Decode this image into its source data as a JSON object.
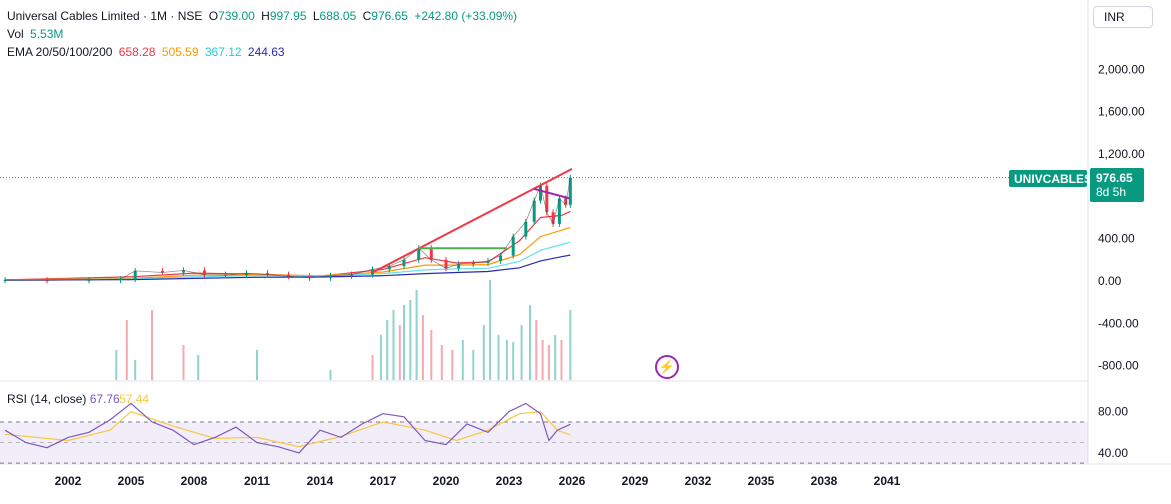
{
  "header": {
    "symbol_title": "Universal Cables Limited · 1M · NSE",
    "open_label": "O",
    "open": "739.00",
    "high_label": "H",
    "high": "997.95",
    "low_label": "L",
    "low": "688.05",
    "close_label": "C",
    "close": "976.65",
    "change": "+242.80 (+33.09%)",
    "vol_label": "Vol",
    "vol_value": "5.53",
    "vol_unit": "M",
    "ema_label": "EMA 20/50/100/200",
    "ema20": "658.28",
    "ema50": "505.59",
    "ema100": "367.12",
    "ema200": "244.63",
    "currency": "INR"
  },
  "colors": {
    "up": "#089981",
    "down": "#f23645",
    "ema20": "#f23645",
    "ema50": "#ff9800",
    "ema100": "#66e0f0",
    "ema200": "#2a2ab0",
    "rsi": "#7e57c2",
    "rsi_ma": "#f7c744",
    "trendline": "#f23645",
    "channel": "#4caf50",
    "pattern": "#9c27b0"
  },
  "price_tag": {
    "ticker": "UNIVCABLES",
    "price": "976.65",
    "countdown": "8d 5h"
  },
  "rsi": {
    "label": "RSI (14, close)",
    "value": "67.76",
    "ma_value": "57.44"
  },
  "icons": {
    "flash": "lightning-icon"
  },
  "chart_data": {
    "type": "candlestick",
    "interval": "1M",
    "title": "",
    "price_axis": {
      "ticks": [
        "2,000.00",
        "1,600.00",
        "1,200.00",
        "400.00",
        "0.00",
        "-400.00",
        "-800.00"
      ],
      "tick_values": [
        2000,
        1600,
        1200,
        400,
        0,
        -400,
        -800
      ]
    },
    "rsi_axis": {
      "ticks": [
        "80.00",
        "40.00"
      ],
      "tick_values": [
        80,
        40
      ],
      "band": [
        30,
        70
      ]
    },
    "x_axis": {
      "ticks": [
        "2002",
        "2005",
        "2008",
        "2011",
        "2014",
        "2017",
        "2020",
        "2023",
        "2026",
        "2029",
        "2032",
        "2035",
        "2038",
        "2041"
      ],
      "tick_values": [
        2002,
        2005,
        2008,
        2011,
        2014,
        2017,
        2020,
        2023,
        2026,
        2029,
        2032,
        2035,
        2038,
        2041
      ]
    },
    "price_series": [
      {
        "t": 1999.0,
        "c": 8
      },
      {
        "t": 2001.0,
        "c": 6
      },
      {
        "t": 2003.0,
        "c": 10
      },
      {
        "t": 2004.5,
        "c": 18
      },
      {
        "t": 2005.2,
        "c": 95
      },
      {
        "t": 2006.5,
        "c": 80
      },
      {
        "t": 2007.5,
        "c": 100
      },
      {
        "t": 2008.5,
        "c": 60
      },
      {
        "t": 2009.5,
        "c": 55
      },
      {
        "t": 2010.5,
        "c": 75
      },
      {
        "t": 2011.5,
        "c": 60
      },
      {
        "t": 2012.5,
        "c": 45
      },
      {
        "t": 2013.5,
        "c": 30
      },
      {
        "t": 2014.5,
        "c": 50
      },
      {
        "t": 2015.5,
        "c": 60
      },
      {
        "t": 2016.5,
        "c": 110
      },
      {
        "t": 2017.3,
        "c": 140
      },
      {
        "t": 2018.0,
        "c": 200
      },
      {
        "t": 2018.7,
        "c": 310
      },
      {
        "t": 2019.3,
        "c": 200
      },
      {
        "t": 2020.0,
        "c": 120
      },
      {
        "t": 2020.6,
        "c": 160
      },
      {
        "t": 2021.3,
        "c": 170
      },
      {
        "t": 2022.0,
        "c": 190
      },
      {
        "t": 2022.6,
        "c": 240
      },
      {
        "t": 2023.2,
        "c": 420
      },
      {
        "t": 2023.8,
        "c": 560
      },
      {
        "t": 2024.2,
        "c": 760
      },
      {
        "t": 2024.5,
        "c": 900
      },
      {
        "t": 2024.8,
        "c": 650
      },
      {
        "t": 2025.1,
        "c": 540
      },
      {
        "t": 2025.4,
        "c": 780
      },
      {
        "t": 2025.7,
        "c": 720
      },
      {
        "t": 2025.92,
        "c": 976.65
      }
    ],
    "ema_series": {
      "ema20": [
        [
          1999,
          10
        ],
        [
          2005,
          40
        ],
        [
          2008,
          75
        ],
        [
          2011,
          65
        ],
        [
          2014,
          45
        ],
        [
          2017,
          110
        ],
        [
          2019,
          220
        ],
        [
          2020.5,
          170
        ],
        [
          2022,
          180
        ],
        [
          2023.5,
          380
        ],
        [
          2024.5,
          600
        ],
        [
          2025.5,
          620
        ],
        [
          2025.92,
          658.28
        ]
      ],
      "ema50": [
        [
          1999,
          10
        ],
        [
          2005,
          25
        ],
        [
          2008,
          55
        ],
        [
          2011,
          60
        ],
        [
          2014,
          50
        ],
        [
          2017,
          85
        ],
        [
          2019,
          150
        ],
        [
          2020.5,
          150
        ],
        [
          2022,
          155
        ],
        [
          2023.5,
          250
        ],
        [
          2024.5,
          420
        ],
        [
          2025.5,
          480
        ],
        [
          2025.92,
          505.59
        ]
      ],
      "ema100": [
        [
          1999,
          10
        ],
        [
          2005,
          18
        ],
        [
          2008,
          40
        ],
        [
          2011,
          50
        ],
        [
          2014,
          45
        ],
        [
          2017,
          70
        ],
        [
          2019,
          105
        ],
        [
          2020.5,
          115
        ],
        [
          2022,
          120
        ],
        [
          2023.5,
          185
        ],
        [
          2024.5,
          290
        ],
        [
          2025.5,
          345
        ],
        [
          2025.92,
          367.12
        ]
      ],
      "ema200": [
        [
          1999,
          8
        ],
        [
          2005,
          12
        ],
        [
          2008,
          25
        ],
        [
          2011,
          35
        ],
        [
          2014,
          38
        ],
        [
          2017,
          50
        ],
        [
          2019,
          70
        ],
        [
          2020.5,
          80
        ],
        [
          2022,
          90
        ],
        [
          2023.5,
          125
        ],
        [
          2024.5,
          190
        ],
        [
          2025.5,
          230
        ],
        [
          2025.92,
          244.63
        ]
      ]
    },
    "volume_series": [
      [
        2004.3,
        30,
        "up"
      ],
      [
        2004.8,
        60,
        "down"
      ],
      [
        2005.2,
        20,
        "up"
      ],
      [
        2006.0,
        70,
        "down"
      ],
      [
        2007.5,
        35,
        "down"
      ],
      [
        2008.2,
        25,
        "up"
      ],
      [
        2011.0,
        30,
        "up"
      ],
      [
        2014.5,
        10,
        "up"
      ],
      [
        2016.5,
        25,
        "down"
      ],
      [
        2016.9,
        45,
        "up"
      ],
      [
        2017.2,
        60,
        "up"
      ],
      [
        2017.5,
        70,
        "up"
      ],
      [
        2017.8,
        55,
        "down"
      ],
      [
        2018.0,
        75,
        "up"
      ],
      [
        2018.3,
        80,
        "up"
      ],
      [
        2018.6,
        90,
        "up"
      ],
      [
        2018.9,
        65,
        "down"
      ],
      [
        2019.3,
        50,
        "down"
      ],
      [
        2019.8,
        35,
        "down"
      ],
      [
        2020.3,
        30,
        "down"
      ],
      [
        2020.8,
        40,
        "up"
      ],
      [
        2021.3,
        30,
        "up"
      ],
      [
        2021.8,
        55,
        "up"
      ],
      [
        2022.1,
        100,
        "up"
      ],
      [
        2022.5,
        45,
        "up"
      ],
      [
        2022.9,
        40,
        "up"
      ],
      [
        2023.2,
        38,
        "up"
      ],
      [
        2023.6,
        55,
        "up"
      ],
      [
        2024.0,
        75,
        "up"
      ],
      [
        2024.3,
        60,
        "down"
      ],
      [
        2024.6,
        40,
        "down"
      ],
      [
        2024.9,
        35,
        "down"
      ],
      [
        2025.2,
        45,
        "up"
      ],
      [
        2025.5,
        40,
        "down"
      ],
      [
        2025.92,
        70,
        "up"
      ]
    ],
    "rsi_series": [
      [
        1999,
        62
      ],
      [
        2000,
        50
      ],
      [
        2001,
        45
      ],
      [
        2002,
        55
      ],
      [
        2003,
        60
      ],
      [
        2004,
        72
      ],
      [
        2005,
        88
      ],
      [
        2006,
        70
      ],
      [
        2007,
        62
      ],
      [
        2008,
        48
      ],
      [
        2009,
        55
      ],
      [
        2010,
        65
      ],
      [
        2011,
        50
      ],
      [
        2012,
        46
      ],
      [
        2013,
        40
      ],
      [
        2014,
        62
      ],
      [
        2015,
        55
      ],
      [
        2016,
        68
      ],
      [
        2017,
        78
      ],
      [
        2018,
        75
      ],
      [
        2019,
        52
      ],
      [
        2020,
        48
      ],
      [
        2021,
        68
      ],
      [
        2022,
        60
      ],
      [
        2023,
        80
      ],
      [
        2023.8,
        88
      ],
      [
        2024.5,
        78
      ],
      [
        2024.9,
        52
      ],
      [
        2025.3,
        62
      ],
      [
        2025.92,
        67.76
      ]
    ],
    "rsi_ma_series": [
      [
        1999,
        58
      ],
      [
        2002,
        52
      ],
      [
        2004,
        62
      ],
      [
        2005,
        80
      ],
      [
        2007,
        66
      ],
      [
        2009,
        54
      ],
      [
        2011,
        55
      ],
      [
        2013,
        46
      ],
      [
        2015,
        56
      ],
      [
        2017,
        70
      ],
      [
        2019,
        62
      ],
      [
        2020.5,
        52
      ],
      [
        2022,
        62
      ],
      [
        2023.5,
        78
      ],
      [
        2024.5,
        80
      ],
      [
        2025.3,
        62
      ],
      [
        2025.92,
        57.44
      ]
    ],
    "drawings": {
      "trendline": [
        [
          2016.5,
          80
        ],
        [
          2026.0,
          1060
        ]
      ],
      "channel_top": [
        [
          2018.7,
          310
        ],
        [
          2022.9,
          310
        ]
      ],
      "pattern_top": [
        [
          2024.2,
          870
        ],
        [
          2025.9,
          780
        ]
      ]
    }
  }
}
